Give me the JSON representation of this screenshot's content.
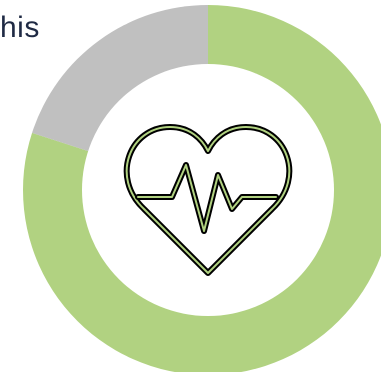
{
  "partial_text": "his",
  "chart_data": {
    "type": "pie",
    "variant": "donut",
    "title": "",
    "slices": [
      {
        "value": 80,
        "color": "#b1d281"
      },
      {
        "value": 20,
        "color": "#c0c0c0"
      }
    ],
    "start_angle_deg": 0,
    "direction": "clockwise",
    "center_icon": "heartbeat-icon"
  },
  "colors": {
    "background": "#ffffff",
    "hole": "#ffffff",
    "icon_stroke": "#000000",
    "icon_inner_stroke": "#b1d281",
    "text": "#1f2a44"
  }
}
